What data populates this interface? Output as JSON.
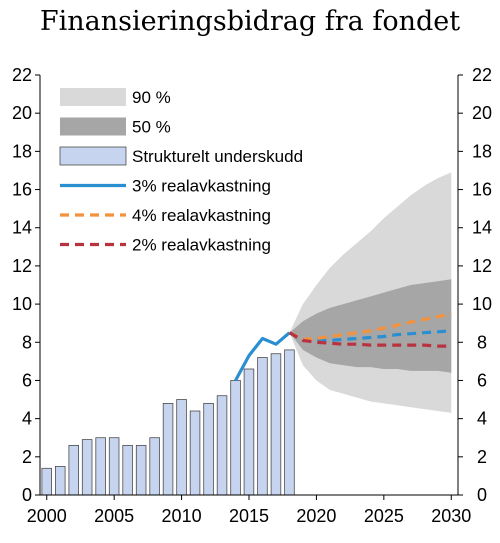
{
  "chart_data": {
    "type": "bar",
    "title": "Finansieringsbidrag fra fondet",
    "xlabel": "",
    "ylabel": "",
    "xlim": [
      1999.5,
      2030.5
    ],
    "ylim": [
      0,
      22
    ],
    "yticks": [
      0,
      2,
      4,
      6,
      8,
      10,
      12,
      14,
      16,
      18,
      20,
      22
    ],
    "xticks": [
      2000,
      2005,
      2010,
      2015,
      2020,
      2025,
      2030
    ],
    "grid": false,
    "legend_position": "top-left",
    "legend": [
      {
        "label": "90 %",
        "kind": "band",
        "color": "#d9d9d9"
      },
      {
        "label": "50 %",
        "kind": "band",
        "color": "#a6a6a6"
      },
      {
        "label": "Strukturelt underskudd",
        "kind": "bar",
        "color": "#c6d4ef"
      },
      {
        "label": "3% realavkastning",
        "kind": "line",
        "color": "#2a8fd0",
        "dash": "solid"
      },
      {
        "label": "4% realavkastning",
        "kind": "line",
        "color": "#f4913c",
        "dash": "dashed"
      },
      {
        "label": "2% realavkastning",
        "kind": "line",
        "color": "#b8333f",
        "dash": "dashed"
      }
    ],
    "bars": {
      "name": "Strukturelt underskudd",
      "x": [
        2000,
        2001,
        2002,
        2003,
        2004,
        2005,
        2006,
        2007,
        2008,
        2009,
        2010,
        2011,
        2012,
        2013,
        2014,
        2015,
        2016,
        2017,
        2018
      ],
      "values": [
        1.4,
        1.5,
        2.6,
        2.9,
        3.0,
        3.0,
        2.6,
        2.6,
        3.0,
        4.8,
        5.0,
        4.4,
        4.8,
        5.2,
        6.0,
        6.6,
        7.2,
        7.4,
        7.6
      ]
    },
    "band_90": {
      "x": [
        2018,
        2019,
        2020,
        2021,
        2022,
        2023,
        2024,
        2025,
        2026,
        2027,
        2028,
        2029,
        2030
      ],
      "upper": [
        8.5,
        10.0,
        11.0,
        11.9,
        12.6,
        13.2,
        13.8,
        14.5,
        15.1,
        15.7,
        16.2,
        16.6,
        16.9
      ],
      "lower": [
        8.5,
        6.8,
        6.0,
        5.5,
        5.3,
        5.1,
        4.9,
        4.8,
        4.7,
        4.6,
        4.5,
        4.4,
        4.3
      ]
    },
    "band_50": {
      "x": [
        2018,
        2019,
        2020,
        2021,
        2022,
        2023,
        2024,
        2025,
        2026,
        2027,
        2028,
        2029,
        2030
      ],
      "upper": [
        8.5,
        9.1,
        9.5,
        9.8,
        10.0,
        10.2,
        10.4,
        10.6,
        10.8,
        11.0,
        11.1,
        11.2,
        11.3
      ],
      "lower": [
        8.5,
        7.6,
        7.2,
        6.9,
        6.8,
        6.7,
        6.7,
        6.6,
        6.6,
        6.5,
        6.5,
        6.5,
        6.4
      ]
    },
    "series": [
      {
        "name": "3% realavkastning",
        "x": [
          2014,
          2015,
          2016,
          2017,
          2018,
          2019,
          2020,
          2021,
          2022,
          2023,
          2024,
          2025,
          2026,
          2027,
          2028,
          2029,
          2030
        ],
        "values": [
          6.0,
          7.3,
          8.2,
          7.9,
          8.5,
          8.1,
          8.1,
          8.1,
          8.15,
          8.2,
          8.25,
          8.3,
          8.4,
          8.45,
          8.5,
          8.55,
          8.6
        ]
      },
      {
        "name": "4% realavkastning",
        "x": [
          2018,
          2019,
          2020,
          2021,
          2022,
          2023,
          2024,
          2025,
          2026,
          2027,
          2028,
          2029,
          2030
        ],
        "values": [
          8.5,
          8.15,
          8.2,
          8.3,
          8.4,
          8.5,
          8.6,
          8.75,
          8.9,
          9.05,
          9.2,
          9.35,
          9.45
        ]
      },
      {
        "name": "2% realavkastning",
        "x": [
          2018,
          2019,
          2020,
          2021,
          2022,
          2023,
          2024,
          2025,
          2026,
          2027,
          2028,
          2029,
          2030
        ],
        "values": [
          8.5,
          8.1,
          8.0,
          7.95,
          7.9,
          7.9,
          7.85,
          7.85,
          7.85,
          7.85,
          7.85,
          7.8,
          7.8
        ]
      }
    ]
  }
}
